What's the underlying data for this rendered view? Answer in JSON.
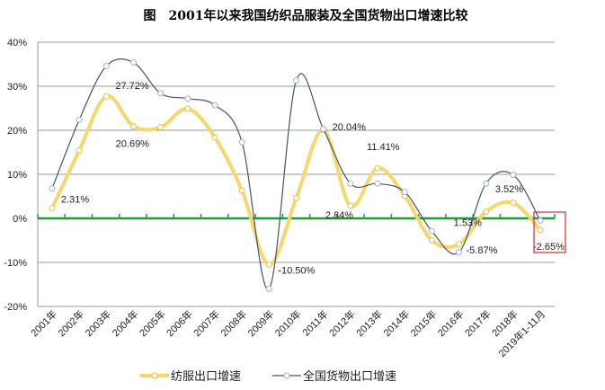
{
  "chart_data": {
    "type": "line",
    "title": "图　2001年以来我国纺织品服装及全国货物出口增速比较",
    "xlabel": "",
    "ylabel": "",
    "ylim": [
      -20,
      40
    ],
    "yticks": [
      "-20%",
      "-10%",
      "0%",
      "10%",
      "20%",
      "30%",
      "40%"
    ],
    "grid": true,
    "legend": "bottom",
    "categories": [
      "2001年",
      "2002年",
      "2003年",
      "2004年",
      "2005年",
      "2006年",
      "2007年",
      "2008年",
      "2009年",
      "2010年",
      "2011年",
      "2012年",
      "2013年",
      "2014年",
      "2015年",
      "2016年",
      "2017年",
      "2018年",
      "2019年1-11月"
    ],
    "series": [
      {
        "name": "纺服出口增速",
        "color": "#f5d76e",
        "values": [
          2.31,
          15.4,
          27.72,
          20.9,
          20.69,
          24.9,
          18.4,
          6.3,
          -10.5,
          4.6,
          20.04,
          2.84,
          11.41,
          5.1,
          -5.0,
          -5.87,
          1.53,
          3.52,
          -2.65
        ],
        "data_labels": {
          "0": "2.31%",
          "2": "27.72%",
          "4": "20.69%",
          "8": "-10.50%",
          "10": "20.04%",
          "11": "2.84%",
          "12": "11.41%",
          "15": "-5.87%",
          "16": "1.53%",
          "17": "3.52%",
          "18": "-2.65%"
        }
      },
      {
        "name": "全国货物出口增速",
        "color": "#44546a",
        "values": [
          6.8,
          22.4,
          34.6,
          35.4,
          28.4,
          27.2,
          25.7,
          17.3,
          -16.0,
          31.3,
          20.3,
          7.9,
          7.9,
          6.0,
          -2.9,
          -7.7,
          7.9,
          9.9,
          -0.5
        ]
      }
    ],
    "zero_line_color": "#1e9b3c",
    "highlight_box_color": "#d03030"
  }
}
